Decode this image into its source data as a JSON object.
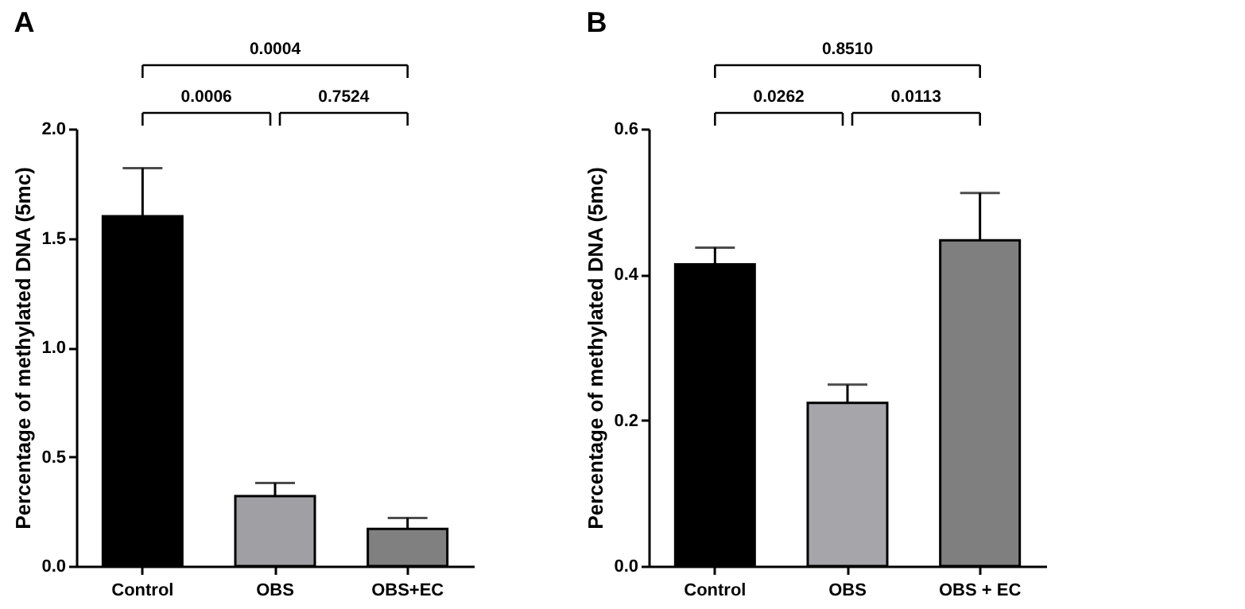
{
  "chart_data": [
    {
      "type": "bar",
      "title": "A",
      "ylabel": "Percentage of methylated DNA (5mc)",
      "categories": [
        "Control",
        "OBS",
        "OBS+EC"
      ],
      "values": [
        1.6,
        0.32,
        0.17
      ],
      "colors": [
        "#000000",
        "#a0a0a4",
        "#808080"
      ],
      "errors": [
        [
          1.6,
          1.82
        ],
        [
          0.32,
          0.38
        ],
        [
          0.17,
          0.22
        ]
      ],
      "ylim": [
        0,
        2.0
      ],
      "yticks": [
        {
          "value": 0,
          "label": "0.0"
        },
        0.5,
        {
          "value": 1,
          "label": "1.0"
        },
        1.5,
        {
          "value": 2,
          "label": "2.0"
        }
      ],
      "annotations": [
        "0.0006",
        "0.7524",
        "0.0004"
      ]
    },
    {
      "type": "bar",
      "title": "B",
      "ylabel": "Percentage of methylated DNA (5mc)",
      "categories": [
        "Control",
        "OBS",
        "OBS + EC"
      ],
      "values": [
        0.414,
        0.224,
        0.447
      ],
      "colors": [
        "#000000",
        "#a6a6aa",
        "#7f7f7f"
      ],
      "errors": [
        [
          0.414,
          0.437
        ],
        [
          0.224,
          0.249
        ],
        [
          0.447,
          0.512
        ]
      ],
      "ylim": [
        0,
        0.6
      ],
      "yticks": [
        {
          "value": 0,
          "label": "0.0"
        },
        0.2,
        0.4,
        0.6
      ],
      "annotations": [
        "0.0262",
        "0.0113",
        "0.8510"
      ]
    }
  ]
}
